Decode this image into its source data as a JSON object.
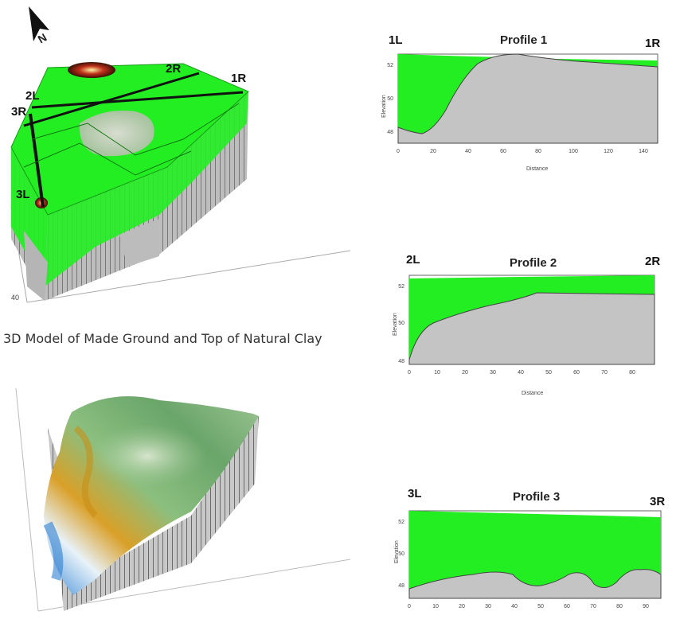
{
  "north_label": "N",
  "model_top": {
    "caption": "3D Model of Made Ground and Top of Natural Clay",
    "section_labels": [
      "1R",
      "2L",
      "2R",
      "3R",
      "3L"
    ],
    "axis_ticks": [
      "",
      "",
      "40"
    ]
  },
  "profiles": [
    {
      "title": "Profile 1",
      "left_label": "1L",
      "right_label": "1R",
      "ylabel": "Elevation",
      "xlabel": "Distance",
      "xticks": [
        "0",
        "20",
        "40",
        "60",
        "80",
        "100",
        "120",
        "140"
      ],
      "yticks": [
        "52",
        "50",
        "48"
      ]
    },
    {
      "title": "Profile 2",
      "left_label": "2L",
      "right_label": "2R",
      "ylabel": "Elevation",
      "xlabel": "Distance",
      "xticks": [
        "0",
        "10",
        "20",
        "30",
        "40",
        "50",
        "60",
        "70",
        "80"
      ],
      "yticks": [
        "52",
        "50",
        "48"
      ]
    },
    {
      "title": "Profile 3",
      "left_label": "3L",
      "right_label": "3R",
      "ylabel": "Elevation",
      "xlabel": "",
      "xticks": [
        "0",
        "10",
        "20",
        "30",
        "40",
        "50",
        "60",
        "70",
        "80",
        "90"
      ],
      "yticks": [
        "52",
        "50",
        "48"
      ]
    }
  ],
  "colors": {
    "made_ground": "#22ee22",
    "natural_clay": "#c4c4c4",
    "frame": "#666666"
  }
}
